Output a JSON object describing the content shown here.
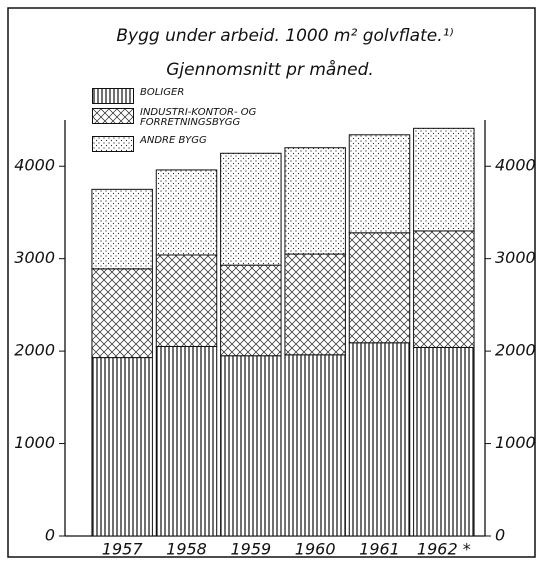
{
  "chart_data": {
    "type": "stacked_bar",
    "title": "Bygg under arbeid. 1000 m² golvflate.¹⁾",
    "subtitle": "Gjennomsnitt pr måned.",
    "categories": [
      "1957",
      "1958",
      "1959",
      "1960",
      "1961",
      "1962 *"
    ],
    "series": [
      {
        "name": "BOLIGER",
        "pattern": "vertical-lines",
        "values": [
          1930,
          2050,
          1950,
          1960,
          2090,
          2040
        ]
      },
      {
        "name": "INDUSTRI-KONTOR- OG FORRETNINGSBYGG",
        "pattern": "crosshatch",
        "values": [
          960,
          990,
          980,
          1090,
          1190,
          1260
        ]
      },
      {
        "name": "ANDRE BYGG",
        "pattern": "dots",
        "values": [
          860,
          920,
          1210,
          1150,
          1060,
          1110
        ]
      }
    ],
    "ylim": [
      0,
      4500
    ],
    "yticks": [
      0,
      1000,
      2000,
      3000,
      4000
    ],
    "right_axis": true
  }
}
